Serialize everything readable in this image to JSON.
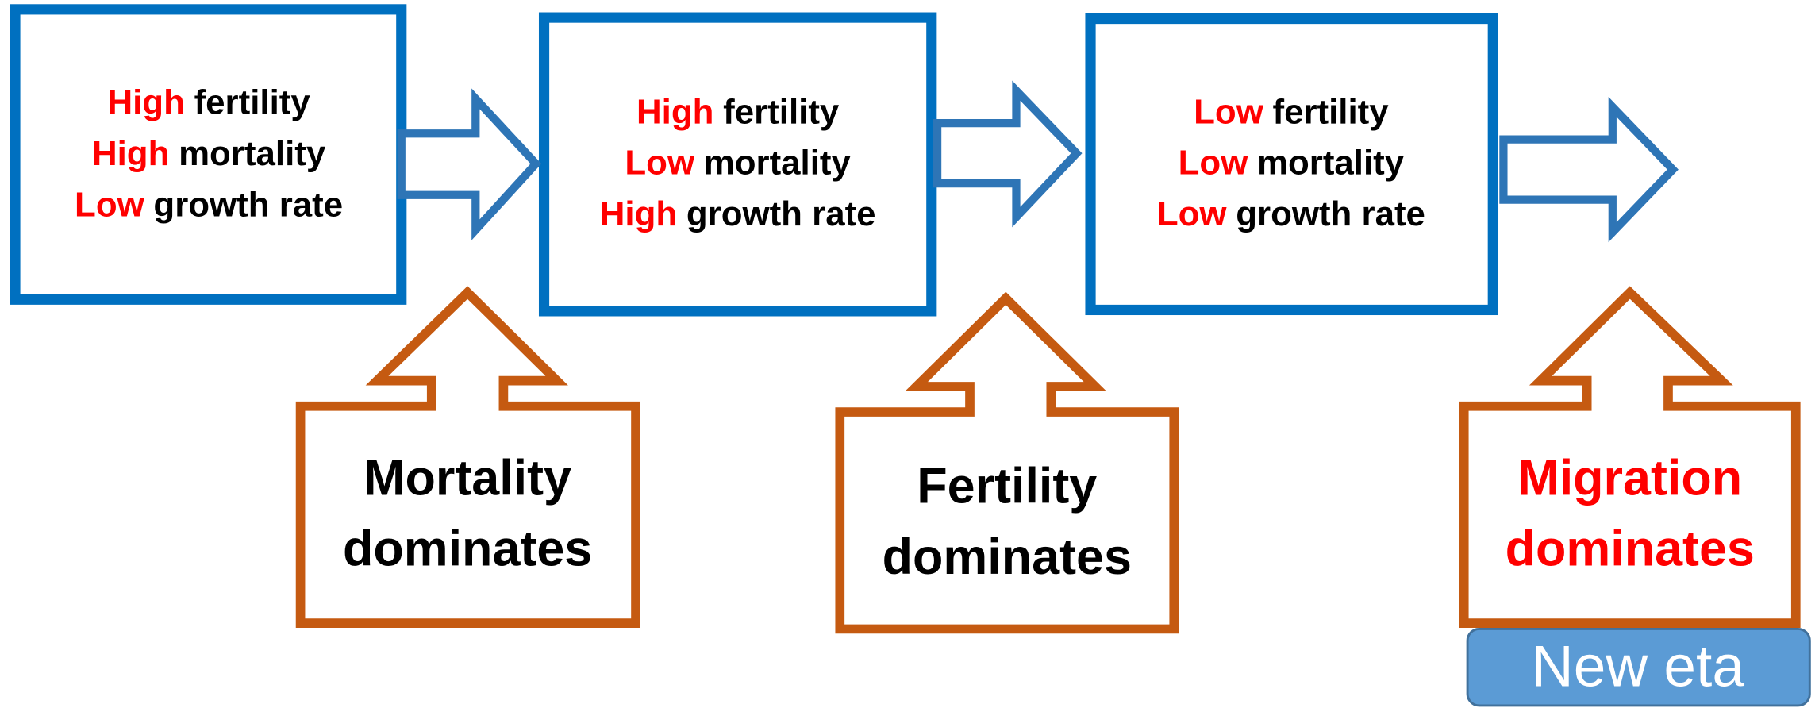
{
  "stages": [
    {
      "lines": [
        {
          "level": "High",
          "factor": "fertility"
        },
        {
          "level": "High",
          "factor": "mortality"
        },
        {
          "level": "Low",
          "factor": "growth rate"
        }
      ]
    },
    {
      "lines": [
        {
          "level": "High",
          "factor": "fertility"
        },
        {
          "level": "Low",
          "factor": "mortality"
        },
        {
          "level": "High",
          "factor": "growth rate"
        }
      ]
    },
    {
      "lines": [
        {
          "level": "Low",
          "factor": "fertility"
        },
        {
          "level": "Low",
          "factor": "mortality"
        },
        {
          "level": "Low",
          "factor": "growth rate"
        }
      ]
    }
  ],
  "callouts": [
    {
      "lines": [
        "Mortality",
        "dominates"
      ]
    },
    {
      "lines": [
        "Fertility",
        "dominates"
      ]
    },
    {
      "lines": [
        "Migration",
        "dominates"
      ]
    }
  ],
  "badge": "New eta"
}
